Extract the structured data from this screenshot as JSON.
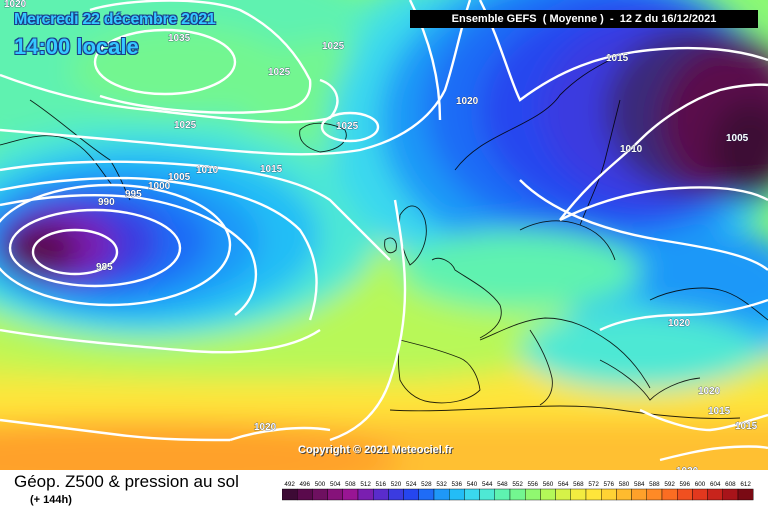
{
  "header": {
    "date": "Mercredi 22 décembre 2021",
    "time": "14:00 locale",
    "model": "Ensemble GEFS  ( Moyenne )  -  12 Z du 16/12/2021"
  },
  "copyright": "Copyright © 2021 Meteociel.fr",
  "footer": {
    "title": "Géop. Z500 & pression au sol",
    "subtitle": "(+ 144h)"
  },
  "legend": {
    "levels": [
      "492",
      "496",
      "500",
      "504",
      "508",
      "512",
      "516",
      "520",
      "524",
      "528",
      "532",
      "536",
      "540",
      "544",
      "548",
      "552",
      "556",
      "560",
      "564",
      "568",
      "572",
      "576",
      "580",
      "584",
      "588",
      "592",
      "596",
      "600",
      "604",
      "608",
      "612"
    ],
    "colors": [
      "#3d0a35",
      "#5a0a4c",
      "#6e1060",
      "#86127a",
      "#991594",
      "#7a1fb0",
      "#5a2ccc",
      "#3b3be0",
      "#2546ef",
      "#1f6cf6",
      "#1f98f8",
      "#23bdf6",
      "#3ad8ee",
      "#4ee8d4",
      "#5ef2b0",
      "#73f690",
      "#90f870",
      "#b4f858",
      "#d6f248",
      "#f2ec40",
      "#ffe53a",
      "#ffd234",
      "#ffbb2e",
      "#ffa12a",
      "#ff8a26",
      "#fb6d22",
      "#f05020",
      "#e2381e",
      "#c8241c",
      "#a8141a",
      "#7a0a14"
    ]
  },
  "isobars": {
    "labels": [
      {
        "text": "1020",
        "name": "isobar-label-1020-nw"
      },
      {
        "text": "1035",
        "name": "isobar-label-1035"
      },
      {
        "text": "1025",
        "name": "isobar-label-1025-greenland-e"
      },
      {
        "text": "1025",
        "name": "isobar-label-1025-greenland"
      },
      {
        "text": "1025",
        "name": "isobar-label-1025-greenland-s"
      },
      {
        "text": "1025",
        "name": "isobar-label-1025-iceland"
      },
      {
        "text": "1020",
        "name": "isobar-label-1020-atlantic"
      },
      {
        "text": "1015",
        "name": "isobar-label-1015-scandinavia"
      },
      {
        "text": "1010",
        "name": "isobar-label-1010-scandinavia"
      },
      {
        "text": "1005",
        "name": "isobar-label-1005-russia"
      },
      {
        "text": "1015",
        "name": "isobar-label-1015-atlantic"
      },
      {
        "text": "1010",
        "name": "isobar-label-1010-atlantic"
      },
      {
        "text": "1005",
        "name": "isobar-label-1005-atlantic"
      },
      {
        "text": "1000",
        "name": "isobar-label-1000"
      },
      {
        "text": "995",
        "name": "isobar-label-995"
      },
      {
        "text": "990",
        "name": "isobar-label-990"
      },
      {
        "text": "985",
        "name": "isobar-label-985"
      },
      {
        "text": "1020",
        "name": "isobar-label-1020-east"
      },
      {
        "text": "1020",
        "name": "isobar-label-1020-se"
      },
      {
        "text": "1015",
        "name": "isobar-label-1015-se"
      },
      {
        "text": "1015",
        "name": "isobar-label-1015-se2"
      },
      {
        "text": "1020",
        "name": "isobar-label-1020-south"
      },
      {
        "text": "1020",
        "name": "isobar-label-1020-sw"
      }
    ]
  }
}
